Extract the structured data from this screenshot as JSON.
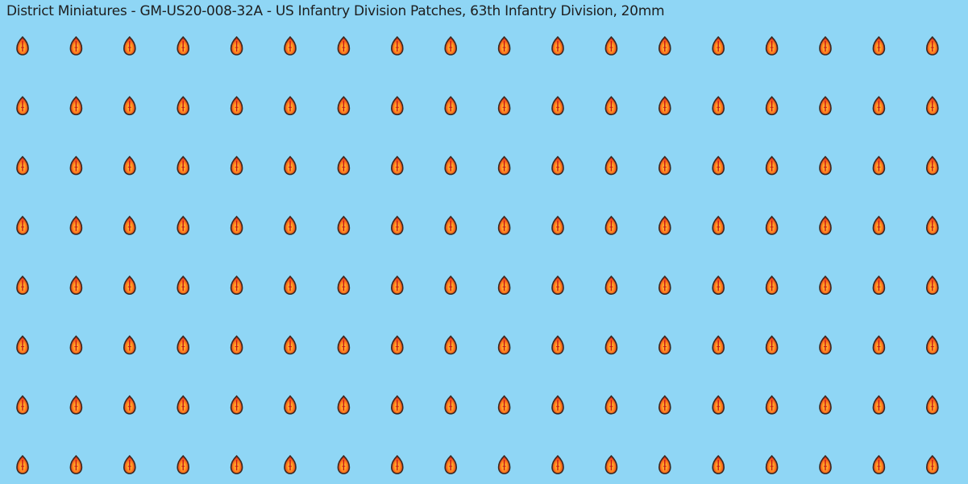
{
  "title": "District Miniatures - GM-US20-008-32A - US Infantry Division Patches, 63th Infantry Division, 20mm"
}
